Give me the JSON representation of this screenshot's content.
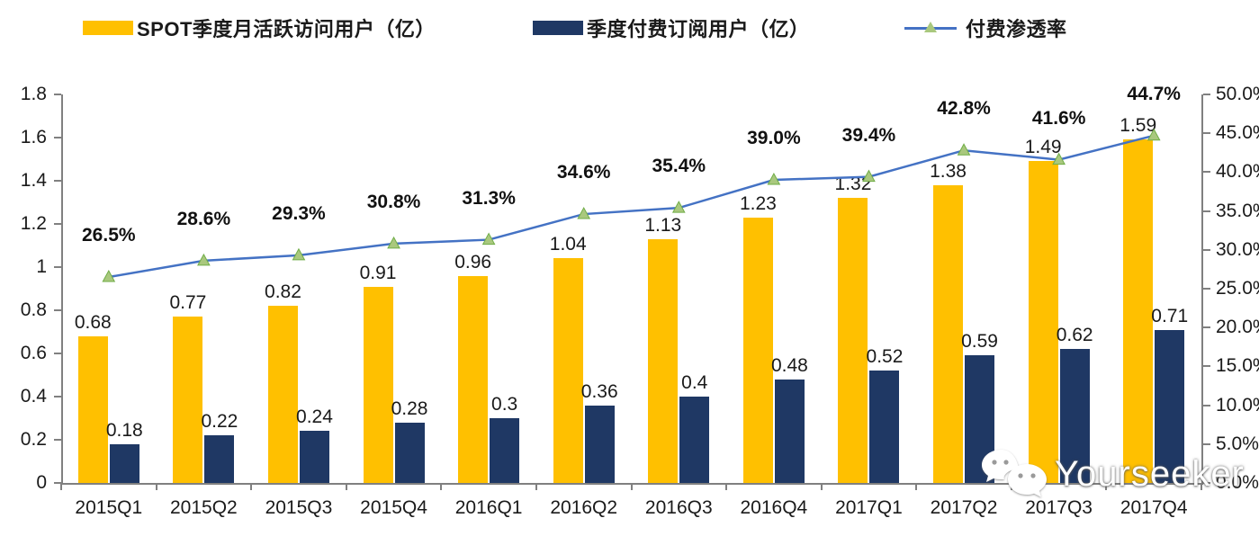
{
  "legend": [
    {
      "label": "SPOT季度月活跃访问用户（亿）",
      "swatch_color": "#FFC000",
      "type": "bar-swatch"
    },
    {
      "label": "季度付费订阅用户（亿）",
      "swatch_color": "#1F3864",
      "type": "bar-swatch"
    },
    {
      "label": "付费渗透率",
      "line_color": "#4472C4",
      "marker_color": "#A9C87E",
      "type": "line-marker"
    }
  ],
  "watermark": {
    "text": "Yourseeker",
    "icon": "wechat-icon"
  },
  "colors": {
    "bar_mau": "#FFC000",
    "bar_subs": "#1F3864",
    "line": "#4472C4",
    "marker_fill": "#A9C87E",
    "marker_stroke": "#70AD47",
    "axis": "#808080",
    "text": "#1a1a1a"
  },
  "chart_data": {
    "type": "bar",
    "subtype": "bar+line combo, dual axis",
    "categories": [
      "2015Q1",
      "2015Q2",
      "2015Q3",
      "2015Q4",
      "2016Q1",
      "2016Q2",
      "2016Q3",
      "2016Q4",
      "2017Q1",
      "2017Q2",
      "2017Q3",
      "2017Q4"
    ],
    "series": [
      {
        "name": "SPOT季度月活跃访问用户（亿）",
        "type": "bar",
        "axis": "left",
        "color": "#FFC000",
        "values": [
          0.68,
          0.77,
          0.82,
          0.91,
          0.96,
          1.04,
          1.13,
          1.23,
          1.32,
          1.38,
          1.49,
          1.59
        ],
        "labels": [
          "0.68",
          "0.77",
          "0.82",
          "0.91",
          "0.96",
          "1.04",
          "1.13",
          "1.23",
          "1.32",
          "1.38",
          "1.49",
          "1.59"
        ]
      },
      {
        "name": "季度付费订阅用户（亿）",
        "type": "bar",
        "axis": "left",
        "color": "#1F3864",
        "values": [
          0.18,
          0.22,
          0.24,
          0.28,
          0.3,
          0.36,
          0.4,
          0.48,
          0.52,
          0.59,
          0.62,
          0.71
        ],
        "labels": [
          "0.18",
          "0.22",
          "0.24",
          "0.28",
          "0.3",
          "0.36",
          "0.4",
          "0.48",
          "0.52",
          "0.59",
          "0.62",
          "0.71"
        ]
      },
      {
        "name": "付费渗透率",
        "type": "line",
        "axis": "right",
        "color": "#4472C4",
        "values": [
          26.5,
          28.6,
          29.3,
          30.8,
          31.3,
          34.6,
          35.4,
          39.0,
          39.4,
          42.8,
          41.6,
          44.7
        ],
        "labels": [
          "26.5%",
          "28.6%",
          "29.3%",
          "30.8%",
          "31.3%",
          "34.6%",
          "35.4%",
          "39.0%",
          "39.4%",
          "42.8%",
          "41.6%",
          "44.7%"
        ]
      }
    ],
    "left_axis": {
      "min": 0,
      "max": 1.8,
      "step": 0.2,
      "ticks": [
        "0",
        "0.2",
        "0.4",
        "0.6",
        "0.8",
        "1",
        "1.2",
        "1.4",
        "1.6",
        "1.8"
      ]
    },
    "right_axis": {
      "min": 0,
      "max": 50,
      "step": 5,
      "ticks": [
        "0.0%",
        "5.0%",
        "10.0%",
        "15.0%",
        "20.0%",
        "25.0%",
        "30.0%",
        "35.0%",
        "40.0%",
        "45.0%",
        "50.0%"
      ]
    },
    "grid": false,
    "legend_position": "top"
  }
}
